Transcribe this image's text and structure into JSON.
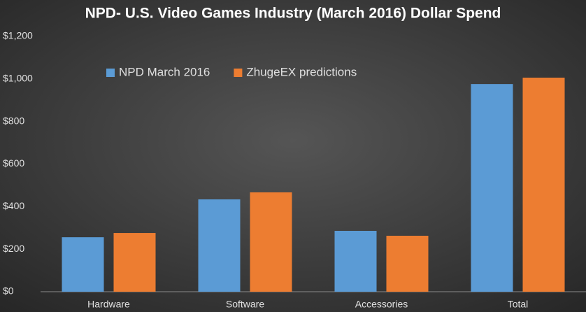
{
  "chart_data": {
    "type": "bar",
    "title": "NPD- U.S. Video Games Industry (March 2016) Dollar Spend",
    "categories": [
      "Hardware",
      "Software",
      "Accessories",
      "Total"
    ],
    "series": [
      {
        "name": "NPD March 2016",
        "color": "#5b9bd5",
        "values": [
          256,
          434,
          286,
          976
        ]
      },
      {
        "name": "ZhugeEX predictions",
        "color": "#ed7d31",
        "values": [
          276,
          467,
          263,
          1006
        ]
      }
    ],
    "ylim": [
      0,
      1200
    ],
    "yticks": [
      {
        "value": 0,
        "label": "$0"
      },
      {
        "value": 200,
        "label": "$200"
      },
      {
        "value": 400,
        "label": "$400"
      },
      {
        "value": 600,
        "label": "$600"
      },
      {
        "value": 800,
        "label": "$800"
      },
      {
        "value": 1000,
        "label": "$1,000"
      },
      {
        "value": 1200,
        "label": "$1,200"
      }
    ],
    "grid": false,
    "legend": "top-left"
  }
}
